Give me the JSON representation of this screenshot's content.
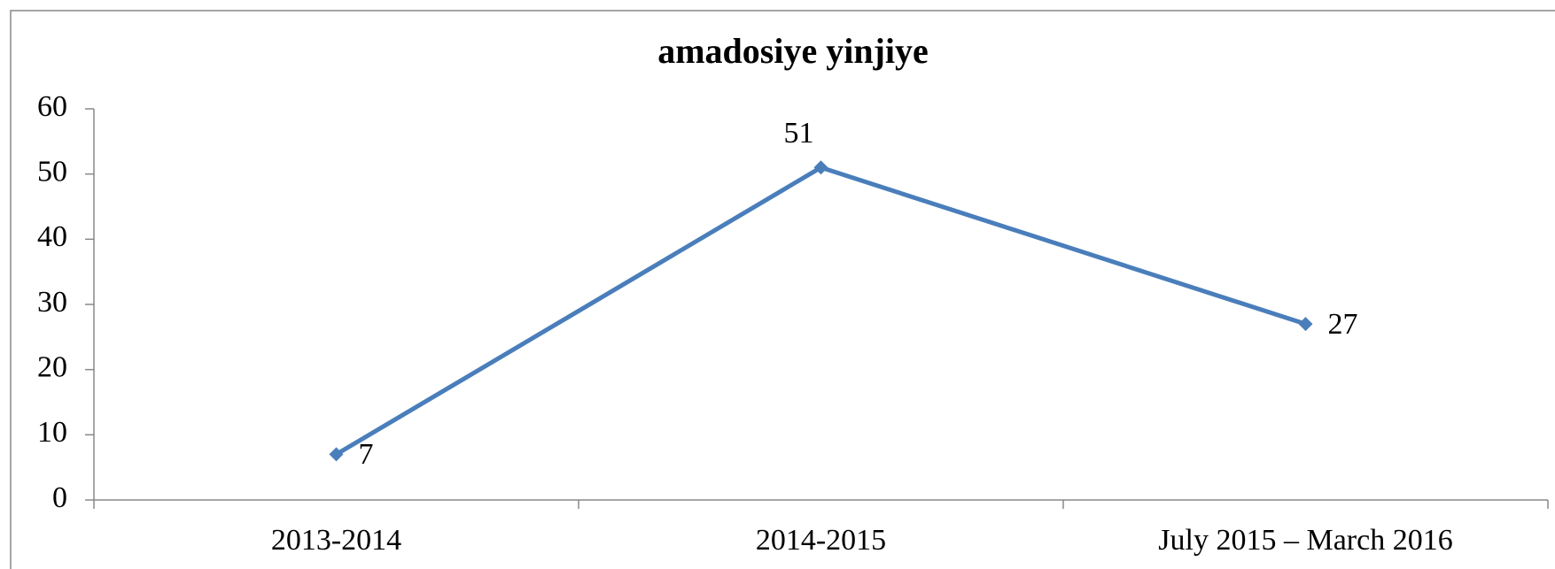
{
  "chart_data": {
    "type": "line",
    "title": "amadosiye yinjiye",
    "categories": [
      "2013-2014",
      "2014-2015",
      "July 2015 – March 2016"
    ],
    "series": [
      {
        "name": "amadosiye yinjiye",
        "color": "#4a7ebb",
        "values": [
          7,
          51,
          27
        ]
      }
    ],
    "ylim": [
      0,
      60
    ],
    "yticks": [
      0,
      10,
      20,
      30,
      40,
      50,
      60
    ],
    "grid": false
  }
}
